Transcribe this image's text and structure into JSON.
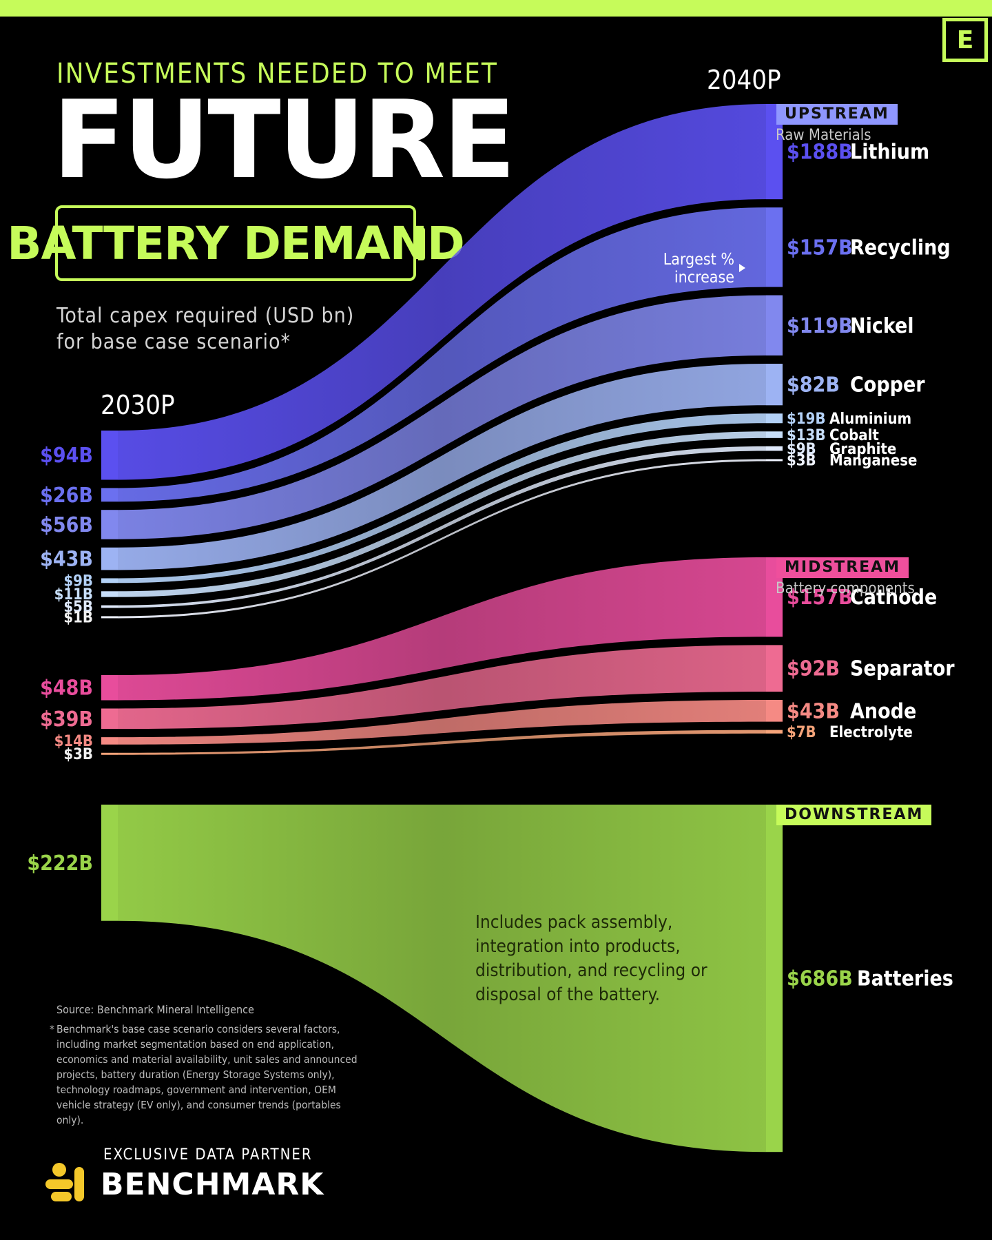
{
  "header": {
    "pretitle": "INVESTMENTS NEEDED TO MEET",
    "title": "FUTURE",
    "title_battery": "BATTERY DEMAND",
    "subtitle_line1": "Total capex required (USD bn)",
    "subtitle_line2": "for base case scenario*",
    "logo": "E"
  },
  "annotations": {
    "largest_line1": "Largest %",
    "largest_line2": "increase",
    "downstream_note": [
      "Includes pack assembly,",
      "integration into products,",
      "distribution, and recycling or",
      "disposal of the battery."
    ]
  },
  "footer": {
    "source": "Source: Benchmark Mineral Intelligence",
    "footnote_star": "*",
    "footnote": "Benchmark's base case scenario considers several factors, including market segmentation based on end application, economics and material availability, unit sales and announced projects, battery duration (Energy Storage Systems only), technology roadmaps, government and intervention, OEM vehicle strategy (EV only), and consumer trends (portables only).",
    "partner_label": "EXCLUSIVE DATA PARTNER",
    "partner_name": "BENCHMARK"
  },
  "chart_data": {
    "type": "sankey",
    "x_labels": [
      "2030P",
      "2040P"
    ],
    "units": "USD bn",
    "sections": [
      {
        "key": "upstream",
        "title": "UPSTREAM",
        "subtitle": "Raw Materials",
        "color": "#8f97ff"
      },
      {
        "key": "midstream",
        "title": "MIDSTREAM",
        "subtitle": "Battery components",
        "color": "#ef4f9c"
      },
      {
        "key": "downstream",
        "title": "DOWNSTREAM",
        "subtitle": "",
        "color": "#c6fb5a"
      }
    ],
    "flows": [
      {
        "name": "Lithium",
        "section": "upstream",
        "value_2030": 94,
        "label_2030": "$94B",
        "value_2040": 188,
        "label_2040": "$188B",
        "color": "#5b50f0"
      },
      {
        "name": "Recycling",
        "section": "upstream",
        "value_2030": 26,
        "label_2030": "$26B",
        "value_2040": 157,
        "label_2040": "$157B",
        "color": "#6b70f0"
      },
      {
        "name": "Nickel",
        "section": "upstream",
        "value_2030": 56,
        "label_2030": "$56B",
        "value_2040": 119,
        "label_2040": "$119B",
        "color": "#8188ee"
      },
      {
        "name": "Copper",
        "section": "upstream",
        "value_2030": 43,
        "label_2030": "$43B",
        "value_2040": 82,
        "label_2040": "$82B",
        "color": "#9db3f3"
      },
      {
        "name": "Aluminium",
        "section": "upstream",
        "value_2030": 9,
        "label_2030": "$9B",
        "value_2040": 19,
        "label_2040": "$19B",
        "color": "#b3d1f7"
      },
      {
        "name": "Cobalt",
        "section": "upstream",
        "value_2030": 11,
        "label_2030": "$11B",
        "value_2040": 13,
        "label_2040": "$13B",
        "color": "#c7def9"
      },
      {
        "name": "Graphite",
        "section": "upstream",
        "value_2030": 5,
        "label_2030": "$5B",
        "value_2040": 9,
        "label_2040": "$9B",
        "color": "#dfe9fb"
      },
      {
        "name": "Manganese",
        "section": "upstream",
        "value_2030": 1,
        "label_2030": "$1B",
        "value_2040": 3,
        "label_2040": "$3B",
        "color": "#eef2fd"
      },
      {
        "name": "Cathode",
        "section": "midstream",
        "value_2030": 48,
        "label_2030": "$48B",
        "value_2040": 157,
        "label_2040": "$157B",
        "color": "#e84d9c"
      },
      {
        "name": "Separator",
        "section": "midstream",
        "value_2030": 39,
        "label_2030": "$39B",
        "value_2040": 92,
        "label_2040": "$92B",
        "color": "#ee6b92"
      },
      {
        "name": "Anode",
        "section": "midstream",
        "value_2030": 14,
        "label_2030": "$14B",
        "value_2040": 43,
        "label_2040": "$43B",
        "color": "#f58a84"
      },
      {
        "name": "Electrolyte",
        "section": "midstream",
        "value_2030": 3,
        "label_2030": "$3B",
        "value_2040": 7,
        "label_2040": "$7B",
        "color": "#f6a47a"
      },
      {
        "name": "Batteries",
        "section": "downstream",
        "value_2030": 222,
        "label_2030": "$222B",
        "value_2040": 686,
        "label_2040": "$686B",
        "color": "#9ad44a"
      }
    ]
  }
}
